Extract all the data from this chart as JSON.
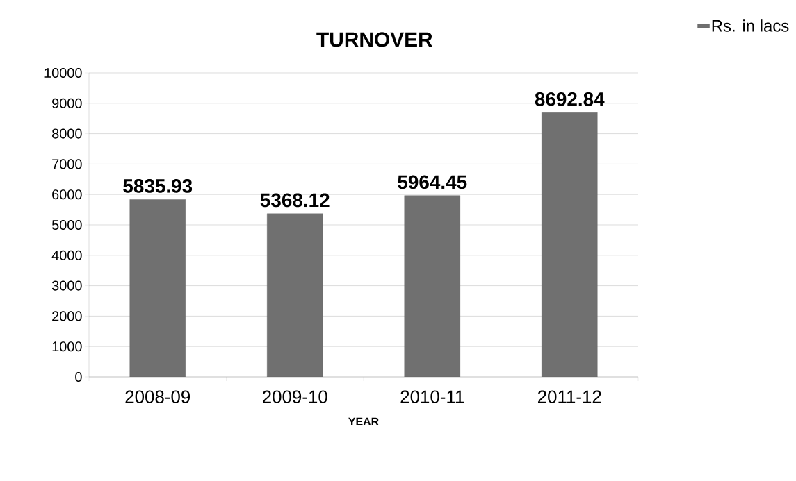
{
  "chart_data": {
    "type": "bar",
    "title": "TURNOVER",
    "xlabel": "YEAR",
    "categories": [
      "2008-09",
      "2009-10",
      "2010-11",
      "2011-12"
    ],
    "series": [
      {
        "name": "Rs. in lacs",
        "color": "#707070",
        "values": [
          5835.93,
          5368.12,
          5964.45,
          8692.84
        ]
      }
    ],
    "ylim": [
      0,
      10000
    ],
    "yticks": [
      0,
      1000,
      2000,
      3000,
      4000,
      5000,
      6000,
      7000,
      8000,
      9000,
      10000
    ],
    "grid": "y",
    "legend": "top right",
    "data_labels": true
  }
}
